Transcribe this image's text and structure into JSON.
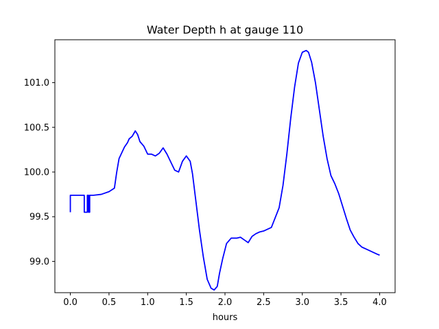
{
  "chart_data": {
    "type": "line",
    "title": "Water Depth h at gauge 110",
    "xlabel": "hours",
    "ylabel": "",
    "xlim": [
      -0.2,
      4.2
    ],
    "ylim": [
      98.65,
      101.48
    ],
    "xticks": [
      0.0,
      0.5,
      1.0,
      1.5,
      2.0,
      2.5,
      3.0,
      3.5,
      4.0
    ],
    "xtick_labels": [
      "0.0",
      "0.5",
      "1.0",
      "1.5",
      "2.0",
      "2.5",
      "3.0",
      "3.5",
      "4.0"
    ],
    "yticks": [
      99.0,
      99.5,
      100.0,
      100.5,
      101.0
    ],
    "ytick_labels": [
      "99.0",
      "99.5",
      "100.0",
      "100.5",
      "101.0"
    ],
    "grid": false,
    "legend": "none",
    "series": [
      {
        "color": "#0000ff",
        "x": [
          0.0,
          0.0,
          0.18,
          0.18,
          0.22,
          0.22,
          0.235,
          0.235,
          0.25,
          0.25,
          0.3,
          0.4,
          0.5,
          0.57,
          0.6,
          0.63,
          0.7,
          0.74,
          0.76,
          0.8,
          0.84,
          0.87,
          0.9,
          0.95,
          1.0,
          1.05,
          1.1,
          1.15,
          1.2,
          1.25,
          1.3,
          1.35,
          1.4,
          1.45,
          1.5,
          1.55,
          1.58,
          1.62,
          1.67,
          1.72,
          1.77,
          1.82,
          1.86,
          1.9,
          1.93,
          1.97,
          2.02,
          2.08,
          2.15,
          2.2,
          2.25,
          2.3,
          2.35,
          2.4,
          2.45,
          2.5,
          2.6,
          2.7,
          2.75,
          2.8,
          2.85,
          2.9,
          2.95,
          3.0,
          3.05,
          3.08,
          3.12,
          3.17,
          3.22,
          3.27,
          3.32,
          3.37,
          3.42,
          3.47,
          3.52,
          3.57,
          3.62,
          3.67,
          3.72,
          3.77,
          3.82,
          3.87,
          3.92,
          3.97,
          4.0
        ],
        "y": [
          99.55,
          99.74,
          99.74,
          99.55,
          99.55,
          99.74,
          99.74,
          99.55,
          99.55,
          99.74,
          99.74,
          99.75,
          99.78,
          99.82,
          100.0,
          100.15,
          100.28,
          100.33,
          100.37,
          100.4,
          100.46,
          100.42,
          100.34,
          100.29,
          100.2,
          100.2,
          100.18,
          100.21,
          100.27,
          100.2,
          100.11,
          100.02,
          100.0,
          100.12,
          100.18,
          100.12,
          99.98,
          99.7,
          99.35,
          99.05,
          98.8,
          98.7,
          98.68,
          98.72,
          98.87,
          99.03,
          99.2,
          99.26,
          99.26,
          99.27,
          99.24,
          99.21,
          99.28,
          99.31,
          99.33,
          99.34,
          99.38,
          99.6,
          99.85,
          100.2,
          100.6,
          100.95,
          101.22,
          101.34,
          101.36,
          101.34,
          101.23,
          101.0,
          100.7,
          100.4,
          100.15,
          99.96,
          99.87,
          99.76,
          99.62,
          99.48,
          99.35,
          99.27,
          99.2,
          99.16,
          99.14,
          99.12,
          99.1,
          99.08,
          99.07
        ]
      }
    ]
  }
}
